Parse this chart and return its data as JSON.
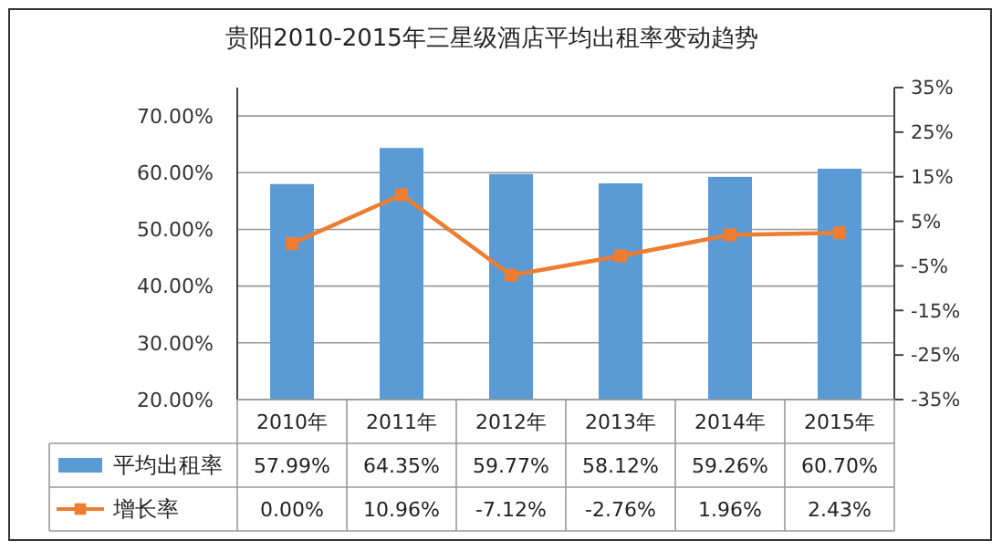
{
  "chart_data": {
    "type": "bar",
    "title": "贵阳2010-2015年三星级酒店平均出租率变动趋势",
    "categories": [
      "2010年",
      "2011年",
      "2012年",
      "2013年",
      "2014年",
      "2015年"
    ],
    "series": [
      {
        "name": "平均出租率",
        "color": "#5b9bd5",
        "values": [
          57.99,
          64.35,
          59.77,
          58.12,
          59.26,
          60.7
        ],
        "value_labels": [
          "57.99%",
          "64.35%",
          "59.77%",
          "58.12%",
          "59.26%",
          "60.70%"
        ]
      },
      {
        "name": "增长率",
        "type": "line",
        "axis": "y2",
        "color": "#ed7d31",
        "marker": "square",
        "values": [
          0.0,
          10.96,
          -7.12,
          -2.76,
          1.96,
          2.43
        ],
        "value_labels": [
          "0.00%",
          "10.96%",
          "-7.12%",
          "-2.76%",
          "1.96%",
          "2.43%"
        ]
      }
    ],
    "ylim": [
      20,
      75
    ],
    "yticks": [
      {
        "value": 20,
        "label": "20.00%"
      },
      {
        "value": 30,
        "label": "30.00%"
      },
      {
        "value": 40,
        "label": "40.00%"
      },
      {
        "value": 50,
        "label": "50.00%"
      },
      {
        "value": 60,
        "label": "60.00%"
      },
      {
        "value": 70,
        "label": "70.00%"
      }
    ],
    "y2lim": [
      -35,
      35
    ],
    "y2ticks": [
      {
        "value": -35,
        "label": "-35%"
      },
      {
        "value": -25,
        "label": "-25%"
      },
      {
        "value": -15,
        "label": "-15%"
      },
      {
        "value": -5,
        "label": "-5%"
      },
      {
        "value": 5,
        "label": "5%"
      },
      {
        "value": 15,
        "label": "15%"
      },
      {
        "value": 25,
        "label": "25%"
      },
      {
        "value": 35,
        "label": "35%"
      }
    ],
    "grid": "y",
    "legend": "bottom"
  }
}
